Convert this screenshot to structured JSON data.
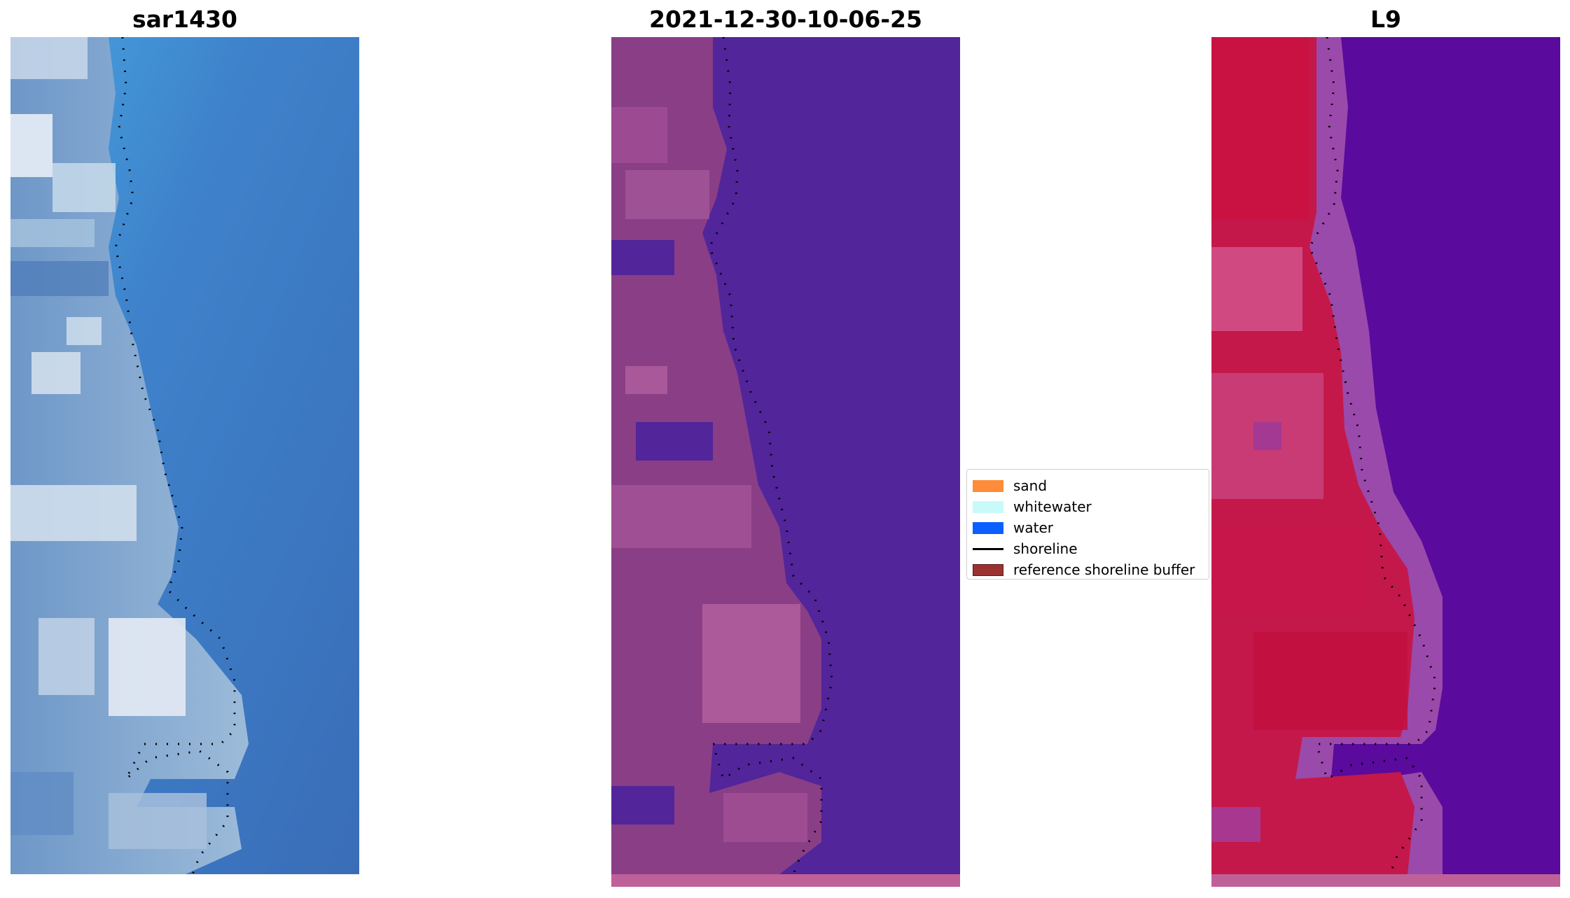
{
  "panels": [
    {
      "title": "sar1430",
      "icon": "rgb-satellite-image"
    },
    {
      "title": "2021-12-30-10-06-25",
      "icon": "classified-satellite-image"
    },
    {
      "title": "L9",
      "icon": "false-color-satellite-image"
    }
  ],
  "legend": {
    "items": [
      {
        "label": "sand",
        "color": "#ff8c3a",
        "kind": "patch"
      },
      {
        "label": "whitewater",
        "color": "#c8fafa",
        "kind": "patch"
      },
      {
        "label": "water",
        "color": "#0b5fff",
        "kind": "patch"
      },
      {
        "label": "shoreline",
        "color": "#000000",
        "kind": "line"
      },
      {
        "label": "reference shoreline buffer",
        "color": "#9a3232",
        "kind": "patch"
      }
    ]
  },
  "colors": {
    "rgb_water": "#3d7cc4",
    "rgb_land": "#7fa4cf",
    "class_water": "#52259a",
    "class_land": "#8a3e86",
    "class_strip": "#c06098",
    "falsecolor_water": "#5a0a9c",
    "falsecolor_land": "#c4184a",
    "falsecolor_strip": "#c06098"
  }
}
